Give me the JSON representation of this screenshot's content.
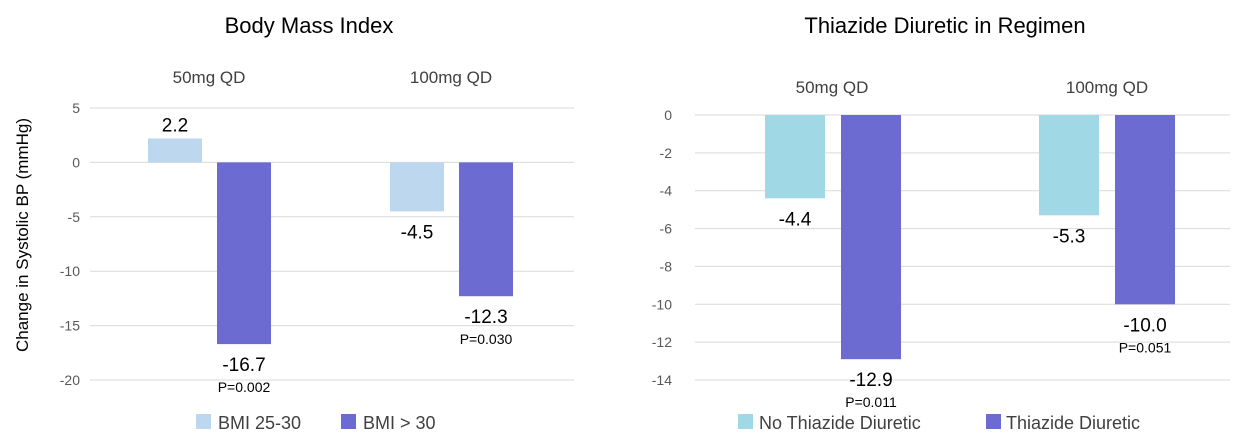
{
  "chart_data": [
    {
      "type": "bar",
      "title": "Body Mass Index",
      "ylabel": "Change in Systolic BP (mmHg)",
      "xlabel": "",
      "categories": [
        "50mg QD",
        "100mg QD"
      ],
      "series": [
        {
          "name": "BMI 25-30",
          "color": "#bdd7ee",
          "values": [
            2.2,
            -4.5
          ],
          "labels": [
            "2.2",
            "-4.5"
          ],
          "pvalues": [
            "",
            ""
          ]
        },
        {
          "name": "BMI > 30",
          "color": "#6b6bd1",
          "values": [
            -16.7,
            -12.3
          ],
          "labels": [
            "-16.7",
            "-12.3"
          ],
          "pvalues": [
            "P=0.002",
            "P=0.030"
          ]
        }
      ],
      "ylim": [
        -20,
        5
      ],
      "yticks": [
        5,
        0,
        -5,
        -10,
        -15,
        -20
      ],
      "grid": true,
      "legend_position": "bottom"
    },
    {
      "type": "bar",
      "title": "Thiazide Diuretic in Regimen",
      "ylabel": "",
      "xlabel": "",
      "categories": [
        "50mg QD",
        "100mg QD"
      ],
      "series": [
        {
          "name": "No Thiazide Diuretic",
          "color": "#a0d8e6",
          "values": [
            -4.4,
            -5.3
          ],
          "labels": [
            "-4.4",
            "-5.3"
          ],
          "pvalues": [
            "",
            ""
          ]
        },
        {
          "name": "Thiazide Diuretic",
          "color": "#6b6bd1",
          "values": [
            -12.9,
            -10.0
          ],
          "labels": [
            "-12.9",
            "-10.0"
          ],
          "pvalues": [
            "P=0.011",
            "P=0.051"
          ]
        }
      ],
      "ylim": [
        -14,
        0
      ],
      "yticks": [
        0,
        -2,
        -4,
        -6,
        -8,
        -10,
        -12,
        -14
      ],
      "grid": true,
      "legend_position": "bottom"
    }
  ]
}
